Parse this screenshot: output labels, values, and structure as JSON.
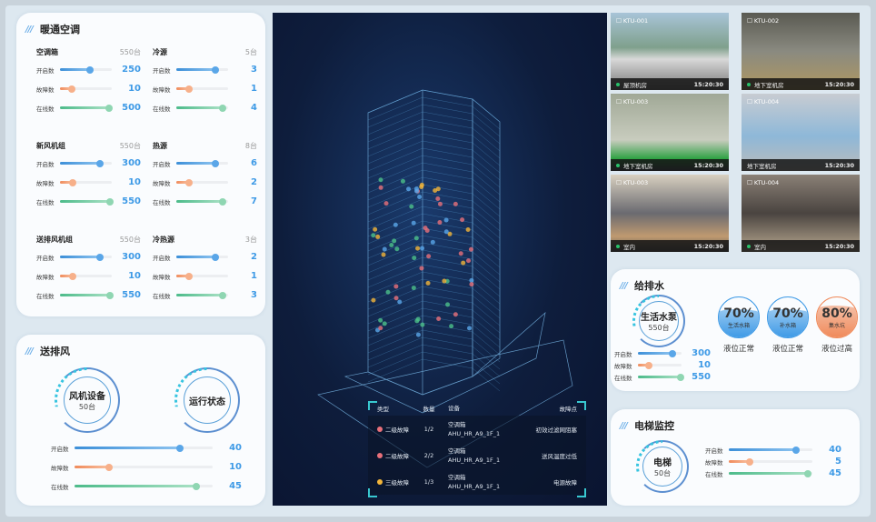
{
  "hvac": {
    "title": "暖通空调",
    "groups": [
      {
        "name": "空调箱",
        "total": "550台",
        "rows": [
          {
            "label": "开启数",
            "value": "250",
            "fill": 0.58
          },
          {
            "label": "故障数",
            "value": "10",
            "fill": 0.22
          },
          {
            "label": "在线数",
            "value": "500",
            "fill": 0.95
          }
        ]
      },
      {
        "name": "冷源",
        "total": "5台",
        "rows": [
          {
            "label": "开启数",
            "value": "3",
            "fill": 0.76
          },
          {
            "label": "故障数",
            "value": "1",
            "fill": 0.24
          },
          {
            "label": "在线数",
            "value": "4",
            "fill": 0.9
          }
        ]
      },
      {
        "name": "新风机组",
        "total": "550台",
        "rows": [
          {
            "label": "开启数",
            "value": "300",
            "fill": 0.78
          },
          {
            "label": "故障数",
            "value": "10",
            "fill": 0.24
          },
          {
            "label": "在线数",
            "value": "550",
            "fill": 0.97
          }
        ]
      },
      {
        "name": "热源",
        "total": "8台",
        "rows": [
          {
            "label": "开启数",
            "value": "6",
            "fill": 0.76
          },
          {
            "label": "故障数",
            "value": "2",
            "fill": 0.24
          },
          {
            "label": "在线数",
            "value": "7",
            "fill": 0.9
          }
        ]
      },
      {
        "name": "送排风机组",
        "total": "550台",
        "rows": [
          {
            "label": "开启数",
            "value": "300",
            "fill": 0.78
          },
          {
            "label": "故障数",
            "value": "10",
            "fill": 0.24
          },
          {
            "label": "在线数",
            "value": "550",
            "fill": 0.97
          }
        ]
      },
      {
        "name": "冷热源",
        "total": "3台",
        "rows": [
          {
            "label": "开启数",
            "value": "2",
            "fill": 0.76
          },
          {
            "label": "故障数",
            "value": "1",
            "fill": 0.24
          },
          {
            "label": "在线数",
            "value": "3",
            "fill": 0.9
          }
        ]
      }
    ]
  },
  "ventilation": {
    "title": "送排风",
    "ring1": {
      "name": "风机设备",
      "count": "50台"
    },
    "ring2": {
      "name": "运行状态"
    },
    "rows": [
      {
        "label": "开启数",
        "value": "40",
        "fill": 0.76
      },
      {
        "label": "故障数",
        "value": "10",
        "fill": 0.25
      },
      {
        "label": "在线数",
        "value": "45",
        "fill": 0.88
      }
    ]
  },
  "alarms": {
    "headers": [
      "类型",
      "数量",
      "设备",
      "故障点"
    ],
    "rows": [
      {
        "type": "二级故障",
        "count": "1/2",
        "device": "空调箱",
        "device_id": "AHU_HR_A9_1F_1",
        "point": "初效过滤网阻塞",
        "color": "#e8707a"
      },
      {
        "type": "二级故障",
        "count": "2/2",
        "device": "空调箱",
        "device_id": "AHU_HR_A9_1F_1",
        "point": "送风温度过低",
        "color": "#e8707a"
      },
      {
        "type": "三级故障",
        "count": "1/3",
        "device": "空调箱",
        "device_id": "AHU_HR_A9_1F_1",
        "point": "电源故障",
        "color": "#f3b53a"
      }
    ]
  },
  "cameras": [
    {
      "id": "KTU-001",
      "location": "屋顶机房",
      "time": "15:20:30",
      "online": true
    },
    {
      "id": "KTU-002",
      "location": "地下室机房",
      "time": "15:20:30",
      "online": true
    },
    {
      "id": "KTU-003",
      "location": "地下室机房",
      "time": "15:20:30",
      "online": true
    },
    {
      "id": "KTU-004",
      "location": "地下室机房",
      "time": "15:20:30",
      "online": false
    },
    {
      "id": "KTU-003",
      "location": "室内",
      "time": "15:20:30",
      "online": true
    },
    {
      "id": "KTU-004",
      "location": "室内",
      "time": "15:20:30",
      "online": true
    }
  ],
  "water": {
    "title": "给排水",
    "ring": {
      "name": "生活水泵",
      "count": "550台"
    },
    "rows": [
      {
        "label": "开启数",
        "value": "300",
        "fill": 0.8
      },
      {
        "label": "故障数",
        "value": "10",
        "fill": 0.25
      },
      {
        "label": "在线数",
        "value": "550",
        "fill": 0.97
      }
    ],
    "tanks": [
      {
        "percent": "70%",
        "level": 0.7,
        "name": "生活水箱",
        "status": "液位正常",
        "color": "#3e9ae6"
      },
      {
        "percent": "70%",
        "level": 0.7,
        "name": "补水箱",
        "status": "液位正常",
        "color": "#3e9ae6"
      },
      {
        "percent": "80%",
        "level": 0.8,
        "name": "集水坑",
        "status": "液位过高",
        "color": "#f08a5a"
      }
    ]
  },
  "elevator": {
    "title": "电梯监控",
    "ring": {
      "name": "电梯",
      "count": "50台"
    },
    "rows": [
      {
        "label": "开启数",
        "value": "40",
        "fill": 0.8
      },
      {
        "label": "故障数",
        "value": "5",
        "fill": 0.25
      },
      {
        "label": "在线数",
        "value": "45",
        "fill": 0.95
      }
    ]
  }
}
